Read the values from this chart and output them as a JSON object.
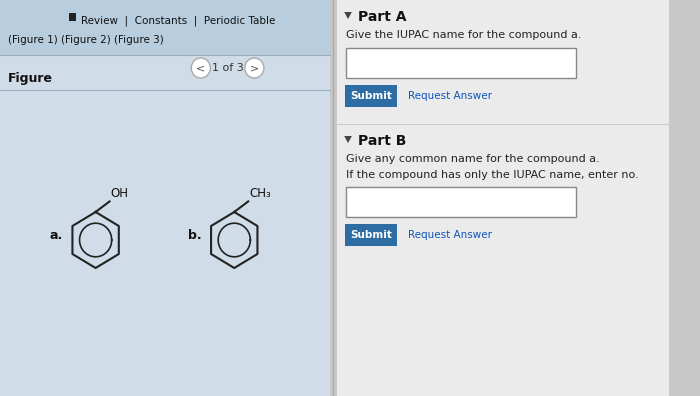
{
  "bg_color": "#c8c8c8",
  "left_panel_bg": "#d0dce8",
  "left_panel_header_bg": "#b8cede",
  "right_panel_bg": "#ebebeb",
  "header_text": "Review  |  Constants  |  Periodic Table",
  "figure_refs": "(Figure 1) (Figure 2) (Figure 3)",
  "figure_label": "Figure",
  "nav_text": "1 of 3",
  "part_a_title": "Part A",
  "part_a_question": "Give the IUPAC name for the compound a.",
  "part_b_title": "Part B",
  "part_b_question1": "Give any common name for the compound a.",
  "part_b_question2": "If the compound has only the IUPAC name, enter no.",
  "submit_btn_color": "#2e6da4",
  "submit_btn_text": "Submit",
  "request_answer_text": "Request Answer",
  "compound_a_label": "a.",
  "compound_b_label": "b.",
  "compound_a_substituent": "OH",
  "compound_b_substituent": "CH₃"
}
